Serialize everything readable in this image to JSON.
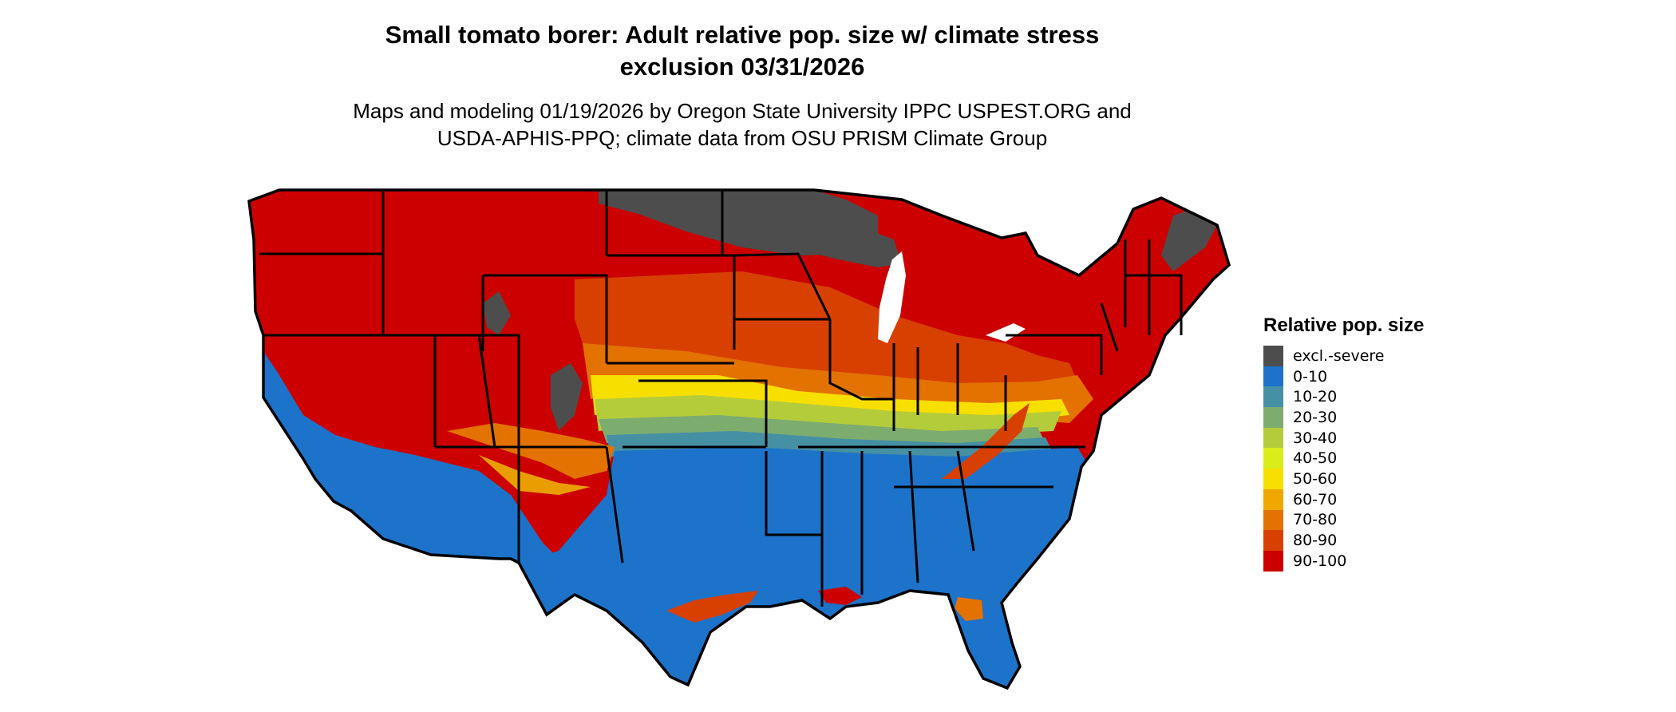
{
  "title_line1": "Small tomato borer: Adult relative pop. size w/ climate stress",
  "title_line2": "exclusion 03/31/2026",
  "subtitle_line1": "Maps and modeling 01/19/2026 by Oregon State University IPPC USPEST.ORG and",
  "subtitle_line2": "USDA-APHIS-PPQ; climate data from OSU PRISM Climate Group",
  "legend": {
    "title": "Relative pop. size",
    "items": [
      {
        "label": "excl.-severe",
        "color": "#4d4d4d"
      },
      {
        "label": "0-10",
        "color": "#1c73c9"
      },
      {
        "label": "10-20",
        "color": "#4590a3"
      },
      {
        "label": "20-30",
        "color": "#7dac6f"
      },
      {
        "label": "30-40",
        "color": "#b5cc3a"
      },
      {
        "label": "40-50",
        "color": "#dbec1b"
      },
      {
        "label": "50-60",
        "color": "#f7e000"
      },
      {
        "label": "60-70",
        "color": "#efa800"
      },
      {
        "label": "70-80",
        "color": "#e37200"
      },
      {
        "label": "80-90",
        "color": "#d84000"
      },
      {
        "label": "90-100",
        "color": "#cc0000"
      }
    ]
  },
  "colors": {
    "excluded": "#4d4d4d",
    "low": "#1c73c9",
    "mid_teal": "#4590a3",
    "mid_green": "#7dac6f",
    "mid_lime": "#b5cc3a",
    "mid_yellow": "#f7e000",
    "orange": "#e37200",
    "dark_orange": "#d84000",
    "high": "#cc0000",
    "state_border": "#000000"
  }
}
